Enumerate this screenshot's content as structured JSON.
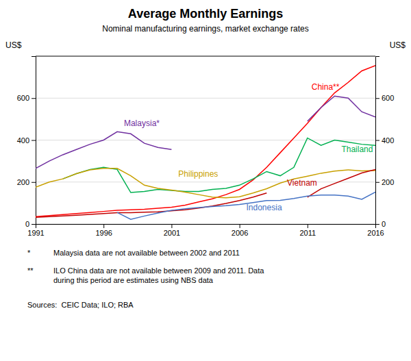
{
  "chart_data": {
    "type": "line",
    "title": "Average Monthly Earnings",
    "subtitle": "Nominal manufacturing earnings, market exchange rates",
    "ylabel": "US$",
    "y2label": "US$",
    "x": [
      1991,
      1992,
      1993,
      1994,
      1995,
      1996,
      1997,
      1998,
      1999,
      2000,
      2001,
      2002,
      2003,
      2004,
      2005,
      2006,
      2007,
      2008,
      2009,
      2010,
      2011,
      2012,
      2013,
      2014,
      2015,
      2016
    ],
    "xlim": [
      1991,
      2016
    ],
    "xticks": [
      1991,
      1996,
      2001,
      2006,
      2011,
      2016
    ],
    "ylim": [
      0,
      800
    ],
    "yticks": [
      0,
      200,
      400,
      600
    ],
    "y2lim": [
      0,
      800
    ],
    "y2ticks": [
      0,
      200,
      400,
      600
    ],
    "grid": true,
    "series": [
      {
        "color": "#FF0000",
        "values": [
          35,
          40,
          45,
          50,
          55,
          60,
          65,
          68,
          70,
          75,
          80,
          90,
          105,
          120,
          140,
          165,
          210,
          270,
          340,
          410,
          480,
          555,
          625,
          675,
          730,
          755
        ]
      },
      {
        "color": "#7030A0",
        "values": [
          265,
          300,
          330,
          355,
          380,
          400,
          440,
          430,
          385,
          365,
          355,
          null,
          null,
          null,
          null,
          null,
          null,
          null,
          null,
          null,
          490,
          555,
          610,
          600,
          535,
          510
        ]
      },
      {
        "color": "#00B050",
        "values": [
          null,
          null,
          215,
          240,
          260,
          270,
          260,
          150,
          155,
          165,
          160,
          155,
          155,
          165,
          170,
          185,
          215,
          250,
          230,
          270,
          410,
          375,
          400,
          390,
          380,
          375
        ]
      },
      {
        "color": "#C8A000",
        "values": [
          175,
          200,
          215,
          240,
          258,
          265,
          265,
          230,
          185,
          170,
          162,
          152,
          140,
          128,
          125,
          130,
          148,
          168,
          195,
          215,
          228,
          242,
          252,
          258,
          253,
          255
        ]
      },
      {
        "color": "#C00000",
        "values": [
          32,
          35,
          38,
          42,
          46,
          50,
          54,
          54,
          56,
          58,
          63,
          68,
          76,
          86,
          98,
          112,
          128,
          148,
          null,
          null,
          128,
          168,
          193,
          218,
          243,
          260
        ]
      },
      {
        "color": "#4472C4",
        "values": [
          null,
          null,
          null,
          null,
          null,
          null,
          55,
          22,
          38,
          52,
          65,
          73,
          78,
          83,
          87,
          93,
          102,
          112,
          113,
          122,
          133,
          138,
          138,
          133,
          118,
          152
        ]
      }
    ],
    "annotations": [
      {
        "text": "China**",
        "x": 2011.3,
        "y": 655,
        "color": "#FF0000"
      },
      {
        "text": "Malaysia*",
        "x": 1997.5,
        "y": 480,
        "color": "#7030A0"
      },
      {
        "text": "Thailand",
        "x": 2013.5,
        "y": 355,
        "color": "#00B050"
      },
      {
        "text": "Philippines",
        "x": 2001.5,
        "y": 240,
        "color": "#C8A000"
      },
      {
        "text": "Vietnam",
        "x": 2009.5,
        "y": 195,
        "color": "#C00000"
      },
      {
        "text": "Indonesia",
        "x": 2006.5,
        "y": 80,
        "color": "#4472C4"
      }
    ],
    "footnotes": [
      {
        "bullet": "*",
        "text": "Malaysia data are not available between 2002 and 2011"
      },
      {
        "bullet": "**",
        "text": "ILO China data are not available between 2009 and 2011. Data\nduring this period are estimates using NBS data"
      }
    ],
    "source": "Sources:  CEIC Data; ILO; RBA"
  }
}
